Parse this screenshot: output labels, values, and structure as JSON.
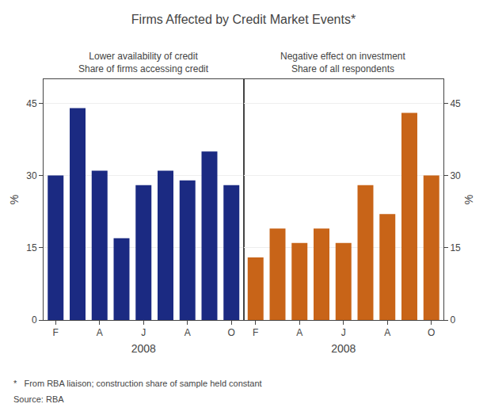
{
  "title": "Firms Affected by Credit Market Events*",
  "chart_data": [
    {
      "type": "bar",
      "title": "Lower availability of credit",
      "subtitle": "Share of firms accessing credit",
      "categories": [
        "F",
        null,
        "A",
        null,
        "J",
        null,
        "A",
        null,
        "O"
      ],
      "values": [
        30,
        44,
        31,
        17,
        28,
        31,
        29,
        35,
        28
      ],
      "color": "#1b2a82",
      "xlabel": "2008",
      "ylabel": "%",
      "ylim": [
        0,
        50
      ],
      "yticks": [
        0,
        15,
        30,
        45
      ],
      "grid": true
    },
    {
      "type": "bar",
      "title": "Negative effect on investment",
      "subtitle": "Share of all respondents",
      "categories": [
        "F",
        null,
        "A",
        null,
        "J",
        null,
        "A",
        null,
        "O"
      ],
      "values": [
        13,
        19,
        16,
        19,
        16,
        28,
        22,
        43,
        30
      ],
      "color": "#c86418",
      "xlabel": "2008",
      "ylabel": "%",
      "ylim": [
        0,
        50
      ],
      "yticks": [
        0,
        15,
        30,
        45
      ],
      "grid": true
    }
  ],
  "annotations": [
    "*   From RBA liaison; construction share of sample held constant",
    "Source: RBA"
  ]
}
